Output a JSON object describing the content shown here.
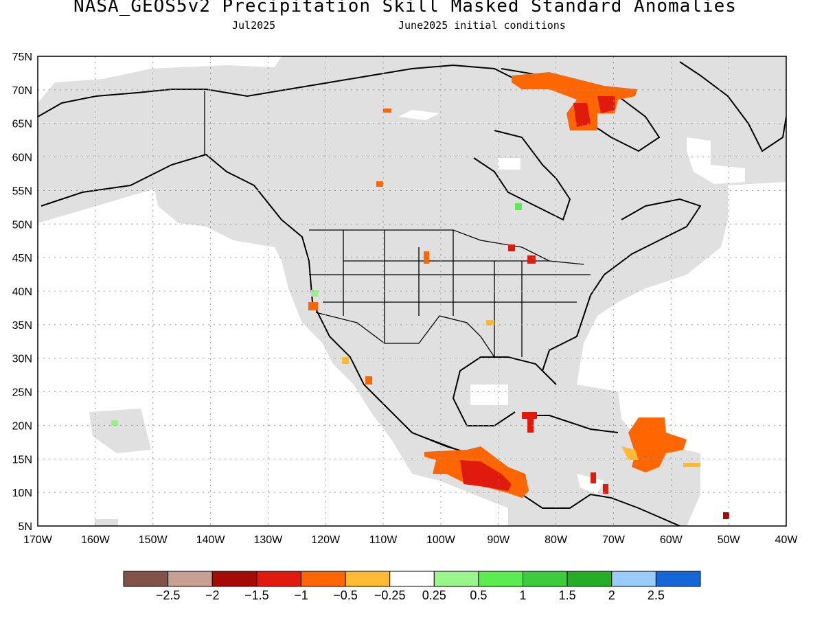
{
  "title": "NASA_GEOS5v2 Precipitation Skill Masked Standard Anomalies",
  "subtitle_left": "Jul2025",
  "subtitle_right": "June2025 initial conditions",
  "map": {
    "lon_range": [
      -170,
      -40
    ],
    "lat_range": [
      5,
      75
    ],
    "lat_labels": [
      "5N",
      "10N",
      "15N",
      "20N",
      "25N",
      "30N",
      "35N",
      "40N",
      "45N",
      "50N",
      "55N",
      "60N",
      "65N",
      "70N",
      "75N"
    ],
    "lon_labels": [
      "170W",
      "160W",
      "150W",
      "140W",
      "130W",
      "120W",
      "110W",
      "100W",
      "90W",
      "80W",
      "70W",
      "60W",
      "50W",
      "40W"
    ],
    "grid": true,
    "mask_color": "#e0e0e0",
    "anomaly_regions": [
      {
        "name": "baffin-island",
        "level": "-1.5..-1",
        "color": "#ff6600"
      },
      {
        "name": "baffin-core",
        "level": "-2..-1.5",
        "color": "#e01b0d"
      },
      {
        "name": "central-america-pacific",
        "level": "-1.5..-1",
        "color": "#ff6600"
      },
      {
        "name": "lesser-antilles",
        "level": "-1..-0.5",
        "color": "#ff6600"
      },
      {
        "name": "great-lakes",
        "level": "-2..-1.5",
        "color": "#e01b0d"
      },
      {
        "name": "california",
        "level": "0.25..0.5",
        "color": "#9cf08c"
      }
    ]
  },
  "colorbar": {
    "colors": [
      "#7f5347",
      "#c8a093",
      "#a50b05",
      "#e01b0d",
      "#ff6600",
      "#ffbb33",
      "#ffffff",
      "#99f58c",
      "#5bec50",
      "#3ccc3c",
      "#25ad25",
      "#99ccf8",
      "#1566d6"
    ],
    "labels": [
      "−2.5",
      "−2",
      "−1.5",
      "−1",
      "−0.5",
      "−0.25",
      "0.25",
      "0.5",
      "1",
      "1.5",
      "2",
      "2.5"
    ]
  }
}
